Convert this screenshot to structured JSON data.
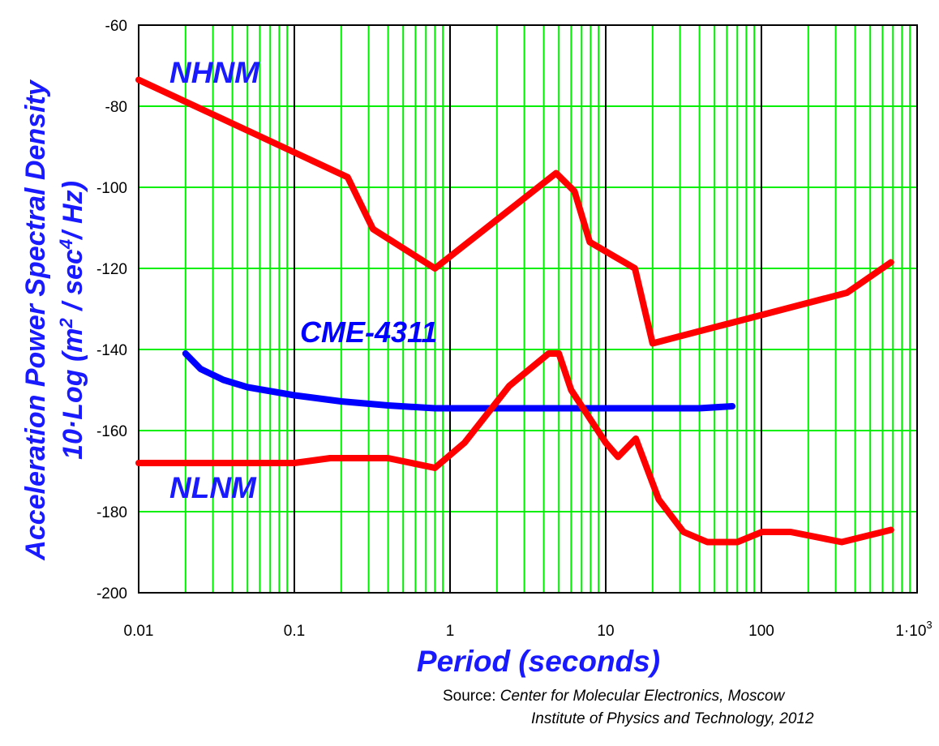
{
  "chart_data": {
    "type": "line",
    "title": "",
    "xlabel": "Period (seconds)",
    "ylabel_line1": "Acceleration Power Spectral Density",
    "ylabel_line2": {
      "pre": "10·Log (m",
      "sup1": "2",
      "mid": " / sec",
      "sup2": "4",
      "post": "/ Hz)"
    },
    "x_scale": "log",
    "xlim": [
      0.01,
      1000
    ],
    "ylim": [
      -200,
      -60
    ],
    "x_ticks": [
      0.01,
      0.1,
      1,
      10,
      100,
      1000
    ],
    "x_tick_labels": [
      "0.01",
      "0.1",
      "1",
      "10",
      "100",
      "1·10"
    ],
    "x_last_tick_sup": "3",
    "y_ticks": [
      -60,
      -80,
      -100,
      -120,
      -140,
      -160,
      -180,
      -200
    ],
    "y_tick_labels": [
      "-60",
      "-80",
      "-100",
      "-120",
      "-140",
      "-160",
      "-180",
      "-200"
    ],
    "grid": true,
    "colors": {
      "minor_grid": "#00ee00",
      "major_grid": "#000000",
      "nhnm": "#ff0000",
      "nlnm": "#ff0000",
      "cme": "#0000ff",
      "axis_label": "#1a1aff"
    },
    "series": [
      {
        "name": "NHNM",
        "color": "#ff0000",
        "x": [
          0.01,
          0.22,
          0.32,
          0.8,
          4.8,
          6.3,
          7.9,
          15.4,
          20,
          354.8,
          680
        ],
        "y": [
          -73.5,
          -97.5,
          -110.3,
          -120,
          -96.5,
          -101,
          -113.5,
          -120,
          -138.5,
          -126,
          -118.5
        ]
      },
      {
        "name": "NLNM",
        "color": "#ff0000",
        "x": [
          0.01,
          0.1,
          0.17,
          0.4,
          0.8,
          1.24,
          2.4,
          4.3,
          5.0,
          6.0,
          10,
          12,
          15.6,
          21.9,
          31.6,
          45,
          70,
          101,
          154,
          328,
          680
        ],
        "y": [
          -168,
          -168,
          -166.8,
          -166.8,
          -169.2,
          -163,
          -149,
          -141,
          -141,
          -150,
          -163,
          -166.5,
          -162,
          -177,
          -185,
          -187.5,
          -187.5,
          -185,
          -185,
          -187.5,
          -184.5
        ]
      },
      {
        "name": "CME-4311",
        "color": "#0000ff",
        "x": [
          0.02,
          0.025,
          0.035,
          0.05,
          0.1,
          0.2,
          0.4,
          0.8,
          2,
          5,
          10,
          20,
          40,
          65
        ],
        "y": [
          -141,
          -144.8,
          -147.5,
          -149.3,
          -151.3,
          -152.8,
          -153.8,
          -154.5,
          -154.5,
          -154.5,
          -154.5,
          -154.5,
          -154.5,
          -154
        ]
      }
    ],
    "annotations": {
      "nhnm_label": "NHNM",
      "nlnm_label": "NLNM",
      "cme_label": "CME-4311"
    },
    "source": {
      "label": "Source:",
      "line1": "Center for Molecular Electronics,  Moscow",
      "line2": "Institute of Physics and Technology, 2012"
    }
  }
}
